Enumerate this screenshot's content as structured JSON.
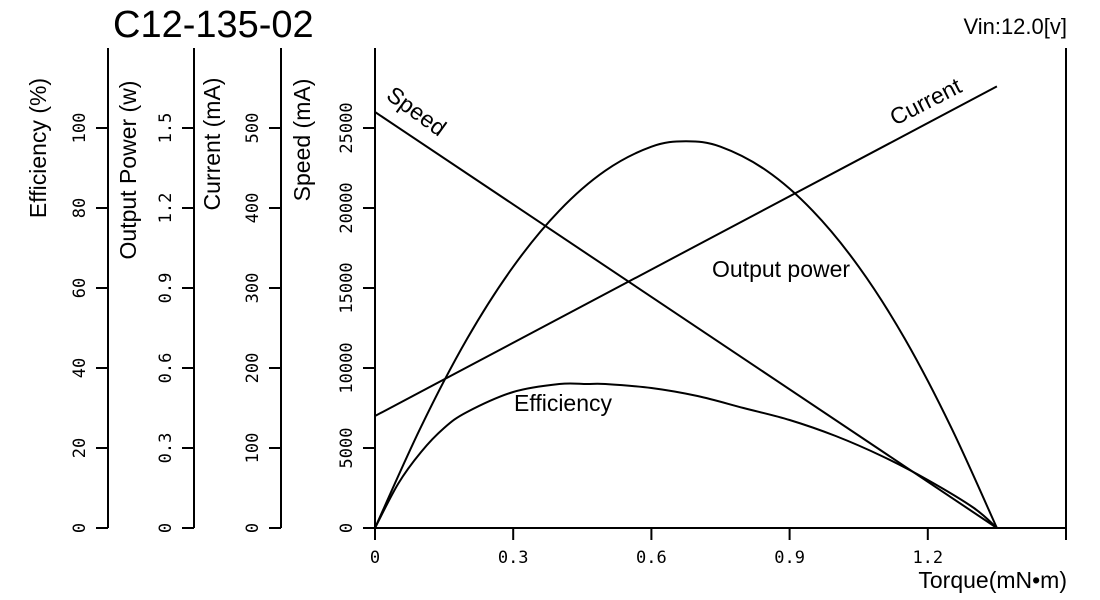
{
  "chart_data": {
    "type": "line",
    "title": "C12-135-02",
    "annotation": "Vin:12.0[v]",
    "xlabel": "Torque(mN•m)",
    "xlim": [
      0,
      1.5
    ],
    "xticks": [
      0,
      0.3,
      0.6,
      0.9,
      1.2
    ],
    "xtick_labels": [
      "0",
      "0.3",
      "0.6",
      "0.9",
      "1.2"
    ],
    "y_axes": [
      {
        "id": "efficiency",
        "label": "Efficiency (%)",
        "lim": [
          0,
          120
        ],
        "ticks": [
          0,
          20,
          40,
          60,
          80,
          100
        ],
        "tick_labels": [
          "0",
          "20",
          "40",
          "60",
          "80",
          "100"
        ]
      },
      {
        "id": "power",
        "label": "Output Power (w)",
        "lim": [
          0,
          1.8
        ],
        "ticks": [
          0,
          0.3,
          0.6,
          0.9,
          1.2,
          1.5
        ],
        "tick_labels": [
          "0",
          "0.3",
          "0.6",
          "0.9",
          "1.2",
          "1.5"
        ]
      },
      {
        "id": "current",
        "label": "Current (mA)",
        "lim": [
          0,
          600
        ],
        "ticks": [
          0,
          100,
          200,
          300,
          400,
          500
        ],
        "tick_labels": [
          "0",
          "100",
          "200",
          "300",
          "400",
          "500"
        ]
      },
      {
        "id": "speed",
        "label": "Speed  (mA)",
        "lim": [
          0,
          30000
        ],
        "ticks": [
          0,
          5000,
          10000,
          15000,
          20000,
          25000
        ],
        "tick_labels": [
          "0",
          "5000",
          "10000",
          "15000",
          "20000",
          "25000"
        ]
      }
    ],
    "series": [
      {
        "name": "Speed",
        "axis": "speed",
        "x": [
          0,
          1.35
        ],
        "y": [
          26000,
          0
        ]
      },
      {
        "name": "Current",
        "axis": "current",
        "x": [
          0,
          1.35
        ],
        "y": [
          140,
          552
        ]
      },
      {
        "name": "Output power",
        "axis": "power",
        "x": [
          0,
          0.1,
          0.2,
          0.3,
          0.4,
          0.5,
          0.6,
          0.675,
          0.75,
          0.85,
          0.95,
          1.05,
          1.15,
          1.25,
          1.35
        ],
        "y": [
          0,
          0.38,
          0.71,
          0.98,
          1.19,
          1.34,
          1.43,
          1.45,
          1.43,
          1.34,
          1.19,
          0.98,
          0.71,
          0.38,
          0
        ]
      },
      {
        "name": "Efficiency",
        "axis": "efficiency",
        "x": [
          0,
          0.05,
          0.1,
          0.15,
          0.2,
          0.3,
          0.4,
          0.46,
          0.5,
          0.6,
          0.7,
          0.8,
          0.9,
          1.0,
          1.1,
          1.2,
          1.3,
          1.35
        ],
        "y": [
          0,
          11,
          19,
          25,
          29,
          34,
          36,
          36,
          36,
          35,
          33,
          30,
          27,
          23,
          18,
          12,
          5,
          0
        ]
      }
    ],
    "grid": false,
    "legend": "none"
  }
}
